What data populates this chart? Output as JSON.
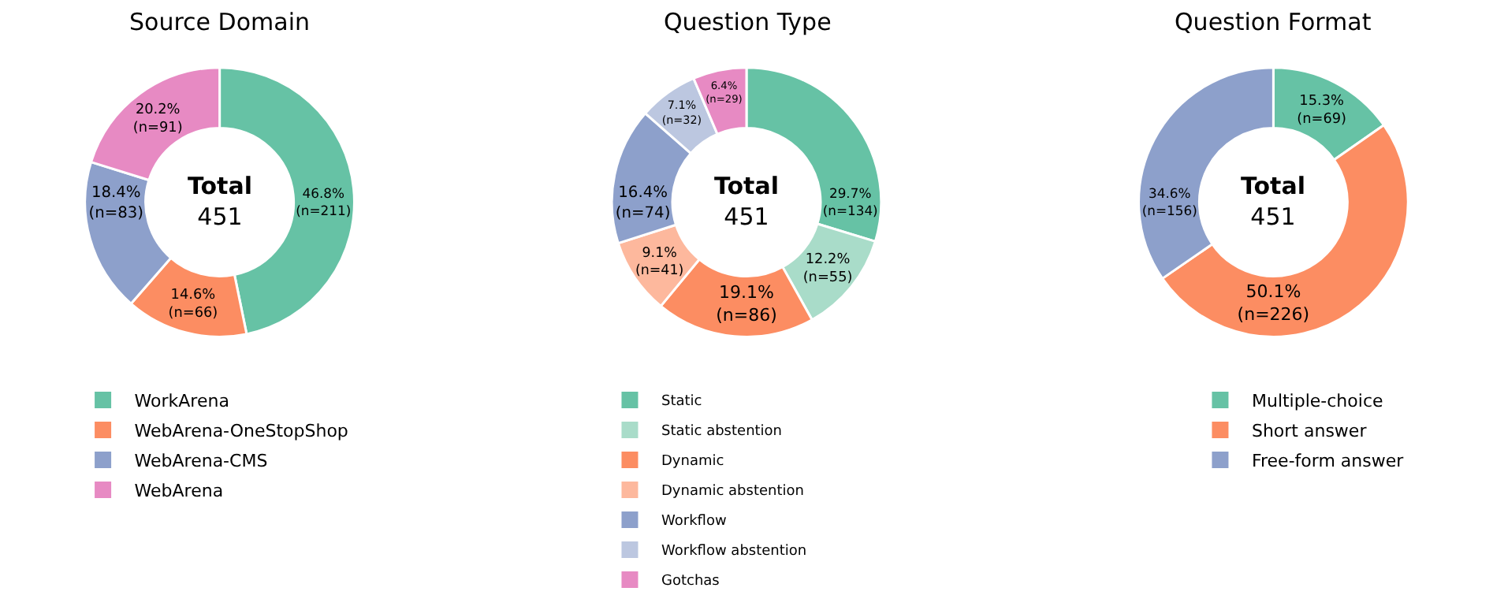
{
  "chart_data": [
    {
      "type": "donut",
      "title": "Source Domain",
      "categories": [
        "WorkArena",
        "WebArena-OneStopShop",
        "WebArena-CMS",
        "WebArena"
      ],
      "values": [
        211,
        66,
        83,
        91
      ],
      "colors": [
        "#66c2a5",
        "#fc8d62",
        "#8da0cb",
        "#e78ac3"
      ],
      "value_labels": [
        "46.8%\n(n=211)",
        "14.6%\n(n=66)",
        "18.4%\n(n=83)",
        "20.2%\n(n=91)"
      ],
      "annotations": [
        "Total\n451"
      ],
      "legend": "bottom"
    },
    {
      "type": "donut",
      "title": "Question Type",
      "categories": [
        "Static",
        "Static abstention",
        "Dynamic",
        "Dynamic abstention",
        "Workflow",
        "Workflow abstention",
        "Gotchas"
      ],
      "values": [
        134,
        55,
        86,
        41,
        74,
        32,
        29
      ],
      "colors": [
        "#66c2a5",
        "#a9dcc9",
        "#fc8d62",
        "#fdb89d",
        "#8da0cb",
        "#bcc7e0",
        "#e78ac3"
      ],
      "value_labels": [
        "29.7%\n(n=134)",
        "12.2%\n(n=55)",
        "19.1%\n(n=86)",
        "9.1%\n(n=41)",
        "16.4%\n(n=74)",
        "7.1%\n(n=32)",
        "6.4%\n(n=29)"
      ],
      "annotations": [
        "Total\n451"
      ],
      "legend": "bottom"
    },
    {
      "type": "donut",
      "title": "Question Format",
      "categories": [
        "Multiple-choice",
        "Short answer",
        "Free-form answer"
      ],
      "values": [
        69,
        226,
        156
      ],
      "colors": [
        "#66c2a5",
        "#fc8d62",
        "#8da0cb"
      ],
      "value_labels": [
        "15.3%\n(n=69)",
        "50.1%\n(n=226)",
        "34.6%\n(n=156)"
      ],
      "annotations": [
        "Total\n451"
      ],
      "legend": "bottom"
    }
  ]
}
